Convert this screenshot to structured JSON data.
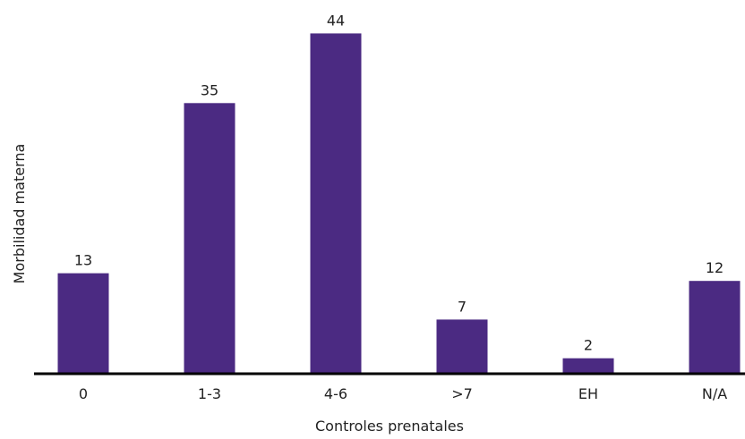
{
  "chart_data": {
    "type": "bar",
    "categories": [
      "0",
      "1-3",
      "4-6",
      ">7",
      "EH",
      "N/A"
    ],
    "values": [
      13,
      35,
      44,
      7,
      2,
      12
    ],
    "data_labels": [
      "13",
      "35",
      "44",
      "7",
      "2",
      "12"
    ],
    "title": "",
    "xlabel": "Controles prenatales",
    "ylabel": "Morbilidad materna",
    "ylim": [
      0,
      48
    ],
    "grid": false,
    "legend": "none",
    "colors": {
      "bar": "#4b2a82",
      "axis": "#000000",
      "text": "#222222"
    }
  }
}
